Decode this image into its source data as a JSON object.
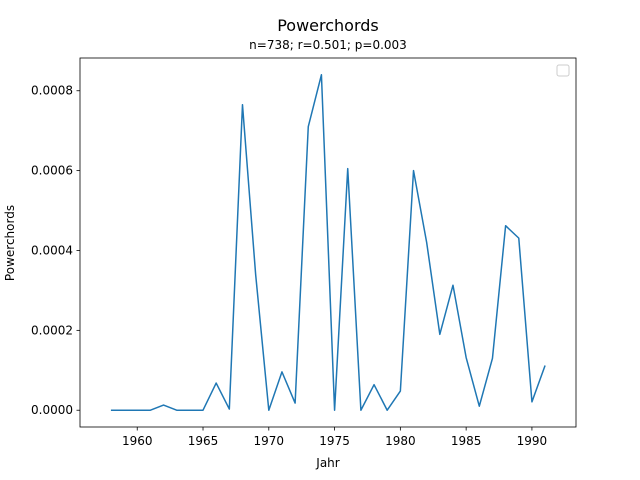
{
  "chart_data": {
    "type": "line",
    "title": "Powerchords",
    "subtitle": "n=738; r=0.501; p=0.003",
    "xlabel": "Jahr",
    "ylabel": "Powerchords",
    "xlim": [
      1955.65,
      1993.35
    ],
    "ylim": [
      -4.2e-05,
      0.000882
    ],
    "xticks": [
      1960,
      1965,
      1970,
      1975,
      1980,
      1985,
      1990
    ],
    "xtick_labels": [
      "1960",
      "1965",
      "1970",
      "1975",
      "1980",
      "1985",
      "1990"
    ],
    "yticks": [
      0,
      0.0002,
      0.0004,
      0.0006,
      0.0008
    ],
    "ytick_labels": [
      "0.0000",
      "0.0002",
      "0.0004",
      "0.0006",
      "0.0008"
    ],
    "grid": false,
    "legend": "top-right",
    "color": "#1f77b4",
    "x": [
      1958,
      1959,
      1960,
      1961,
      1962,
      1963,
      1964,
      1965,
      1966,
      1967,
      1968,
      1969,
      1970,
      1971,
      1972,
      1973,
      1974,
      1975,
      1976,
      1977,
      1978,
      1979,
      1980,
      1981,
      1982,
      1983,
      1984,
      1985,
      1986,
      1987,
      1988,
      1989,
      1990,
      1991
    ],
    "y": [
      0,
      0,
      0,
      0,
      1.3e-05,
      0,
      0,
      0,
      6.8e-05,
      3e-06,
      0.000765,
      0.00034,
      0,
      9.6e-05,
      1.8e-05,
      0.00071,
      0.00084,
      0,
      0.000605,
      0,
      6.4e-05,
      0,
      4.8e-05,
      0.0006,
      0.00042,
      0.00019,
      0.000313,
      0.000132,
      1e-05,
      0.00013,
      0.000462,
      0.000431,
      2.1e-05,
      0.000112
    ]
  }
}
